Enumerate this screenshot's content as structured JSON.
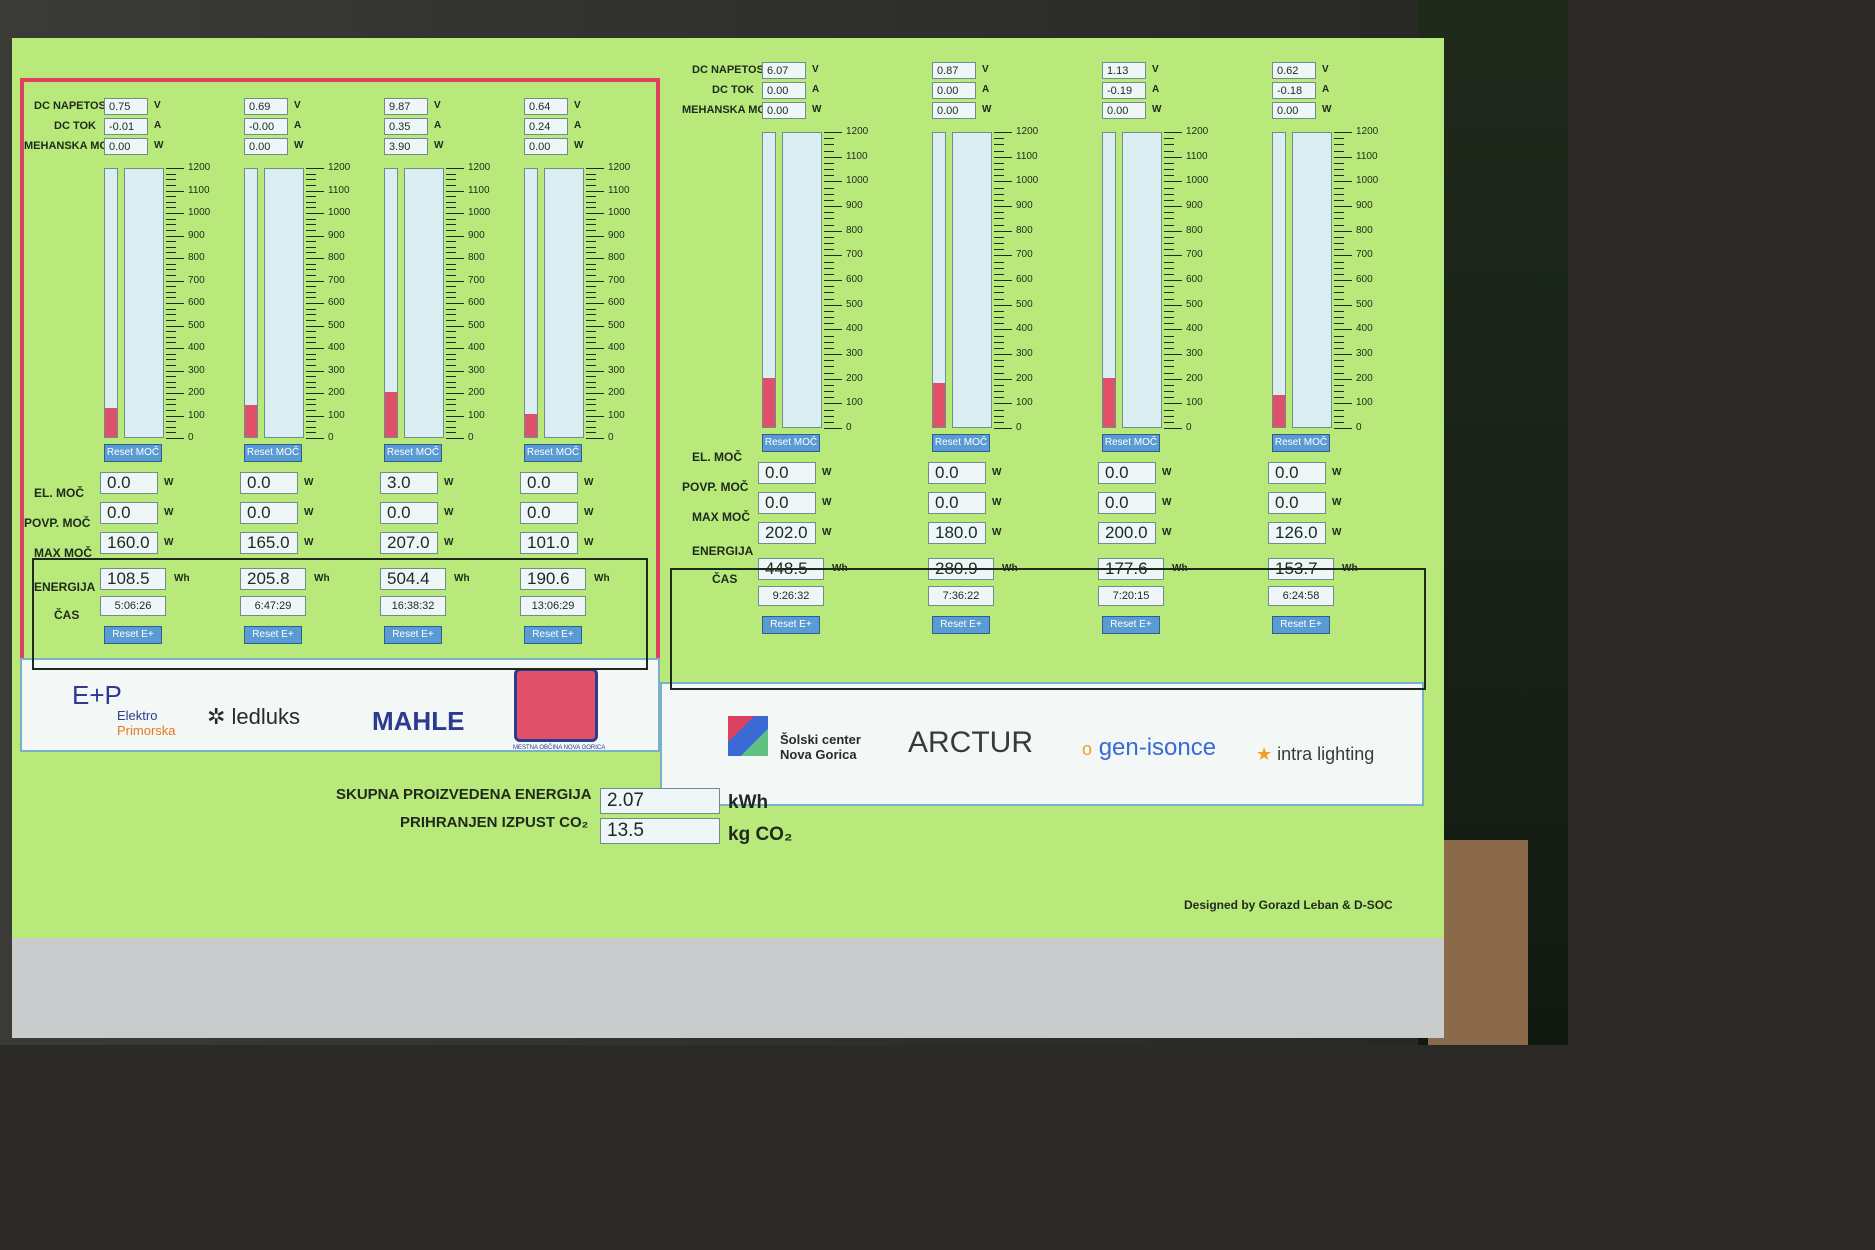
{
  "labels": {
    "dc_napetost": "DC NAPETOST",
    "dc_tok": "DC TOK",
    "mehanska_moc": "MEHANSKA MOČ",
    "el_moc": "EL. MOČ",
    "povp_moc": "POVP. MOČ",
    "max_moc": "MAX MOČ",
    "energija": "ENERGIJA",
    "cas": "ČAS",
    "reset_moc": "Reset MOČ",
    "reset_e": "Reset E+",
    "unit_v": "V",
    "unit_a": "A",
    "unit_w": "W",
    "unit_wh": "Wh"
  },
  "scale_ticks": [
    "0",
    "100",
    "200",
    "300",
    "400",
    "500",
    "600",
    "700",
    "800",
    "900",
    "1000",
    "1100",
    "1200"
  ],
  "meters_left": [
    {
      "voltage": "0.75",
      "current": "-0.01",
      "mech_power": "0.00",
      "el_moc": "0.0",
      "povp_moc": "0.0",
      "max_moc": "160.0",
      "energija": "108.5",
      "cas": "5:06:26",
      "bar_level_w": 130
    },
    {
      "voltage": "0.69",
      "current": "-0.00",
      "mech_power": "0.00",
      "el_moc": "0.0",
      "povp_moc": "0.0",
      "max_moc": "165.0",
      "energija": "205.8",
      "cas": "6:47:29",
      "bar_level_w": 140
    },
    {
      "voltage": "9.87",
      "current": "0.35",
      "mech_power": "3.90",
      "el_moc": "3.0",
      "povp_moc": "0.0",
      "max_moc": "207.0",
      "energija": "504.4",
      "cas": "16:38:32",
      "bar_level_w": 200
    },
    {
      "voltage": "0.64",
      "current": "0.24",
      "mech_power": "0.00",
      "el_moc": "0.0",
      "povp_moc": "0.0",
      "max_moc": "101.0",
      "energija": "190.6",
      "cas": "13:06:29",
      "bar_level_w": 100
    }
  ],
  "meters_right": [
    {
      "voltage": "6.07",
      "current": "0.00",
      "mech_power": "0.00",
      "el_moc": "0.0",
      "povp_moc": "0.0",
      "max_moc": "202.0",
      "energija": "448.5",
      "cas": "9:26:32",
      "bar_level_w": 200
    },
    {
      "voltage": "0.87",
      "current": "0.00",
      "mech_power": "0.00",
      "el_moc": "0.0",
      "povp_moc": "0.0",
      "max_moc": "180.0",
      "energija": "280.9",
      "cas": "7:36:22",
      "bar_level_w": 180
    },
    {
      "voltage": "1.13",
      "current": "-0.19",
      "mech_power": "0.00",
      "el_moc": "0.0",
      "povp_moc": "0.0",
      "max_moc": "200.0",
      "energija": "177.6",
      "cas": "7:20:15",
      "bar_level_w": 200
    },
    {
      "voltage": "0.62",
      "current": "-0.18",
      "mech_power": "0.00",
      "el_moc": "0.0",
      "povp_moc": "0.0",
      "max_moc": "126.0",
      "energija": "153.7",
      "cas": "6:24:58",
      "bar_level_w": 130
    }
  ],
  "logos_left": {
    "elektro": "Elektro",
    "primorska": "Primorska",
    "ledluks": "ledluks",
    "mahle": "MAHLE",
    "seal_text": "MESTNA OBČINA NOVA GORICA"
  },
  "logos_right": {
    "solski1": "Šolski center",
    "solski2": "Nova Gorica",
    "arctur": "ARCTUR",
    "genisonce": "gen-isonce",
    "intra": "intra lighting"
  },
  "totals": {
    "energy_label": "SKUPNA PROIZVEDENA ENERGIJA",
    "energy_value": "2.07",
    "energy_unit": "kWh",
    "co2_label": "PRIHRANJEN IZPUST CO₂",
    "co2_value": "13.5",
    "co2_unit": "kg CO₂"
  },
  "credit": "Designed by Gorazd Leban & D-SOC",
  "colors": {
    "panel": "#b8e97a",
    "accent_red": "#e04060",
    "bar_fill": "#e0506a",
    "button": "#5a9bd4"
  }
}
